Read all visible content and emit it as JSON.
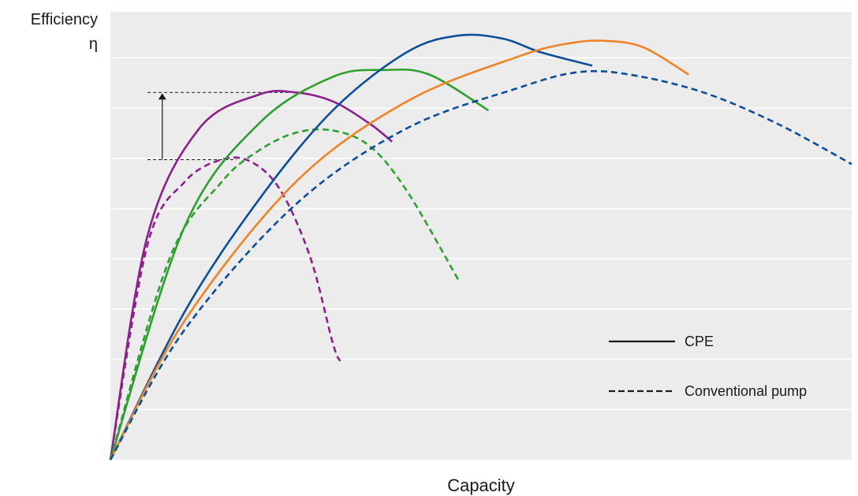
{
  "chart_data": {
    "type": "line",
    "title": "",
    "ylabel": "Efficiency",
    "ylabel_symbol": "η",
    "xlabel": "Capacity",
    "xlim": [
      0,
      100
    ],
    "ylim": [
      0,
      100
    ],
    "grid": true,
    "legend_position": "bottom-right",
    "legend": [
      {
        "label": "CPE",
        "style": "solid"
      },
      {
        "label": "Conventional pump",
        "style": "dashed"
      }
    ],
    "annotation": {
      "type": "efficiency-gain-arrow",
      "from_y": 67,
      "to_y": 82
    },
    "series": [
      {
        "color": "#8e1f8e",
        "style": "solid",
        "x": [
          0,
          5,
          12,
          20,
          25,
          30,
          35,
          38
        ],
        "y": [
          0,
          50,
          74,
          81.5,
          82,
          80,
          75,
          71
        ]
      },
      {
        "color": "#8e1f8e",
        "style": "dashed",
        "x": [
          0,
          5,
          10,
          15,
          19,
          23,
          27,
          30,
          31
        ],
        "y": [
          0,
          48,
          62,
          67,
          66.5,
          60,
          45,
          26,
          22
        ]
      },
      {
        "color": "#2ca02c",
        "style": "solid",
        "x": [
          0,
          10,
          20,
          30,
          37,
          43,
          51
        ],
        "y": [
          0,
          52,
          75,
          85.5,
          87,
          86,
          78
        ]
      },
      {
        "color": "#2ca02c",
        "style": "dashed",
        "x": [
          0,
          8,
          15,
          20,
          25,
          30,
          35,
          40,
          47
        ],
        "y": [
          0,
          45,
          62,
          69,
          73,
          73.5,
          70,
          60,
          40
        ]
      },
      {
        "color": "#0b4f9c",
        "style": "solid",
        "x": [
          0,
          10,
          20,
          30,
          40,
          47,
          53,
          58,
          65
        ],
        "y": [
          0,
          33,
          58,
          78,
          91,
          94.7,
          94,
          91,
          88
        ]
      },
      {
        "color": "#f28324",
        "style": "solid",
        "x": [
          0,
          10,
          25,
          40,
          55,
          62,
          67,
          72,
          78
        ],
        "y": [
          0,
          31,
          62,
          80,
          90,
          93,
          93.5,
          92,
          86
        ]
      },
      {
        "color": "#0b4f9c",
        "style": "dashed",
        "x": [
          0,
          10,
          25,
          40,
          55,
          63,
          70,
          80,
          90,
          100
        ],
        "y": [
          0,
          29,
          57,
          74,
          83,
          86.5,
          86,
          82,
          75,
          66
        ]
      }
    ]
  }
}
